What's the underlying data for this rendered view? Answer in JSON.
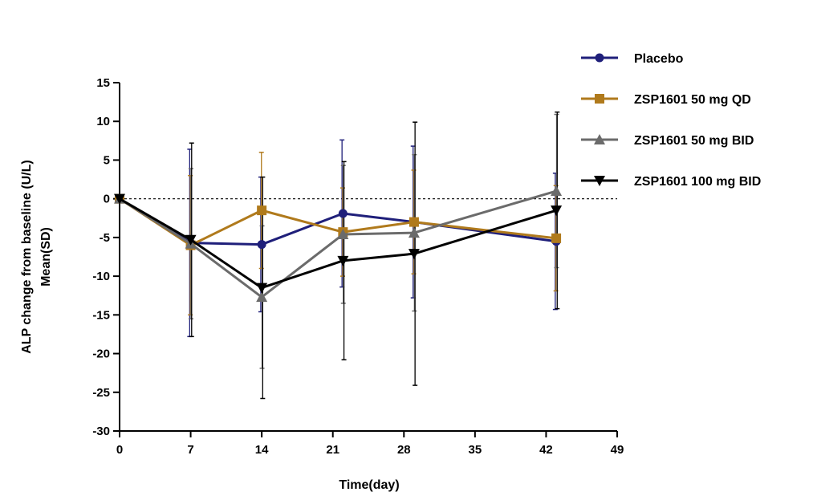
{
  "chart_data": {
    "type": "line",
    "title": "",
    "xlabel": "Time(day)",
    "ylabel_line1": "ALP change from baseline (U/L)",
    "ylabel_line2": "Mean(SD)",
    "xlim": [
      0,
      49
    ],
    "ylim": [
      -30,
      15
    ],
    "x_ticks": [
      0,
      7,
      14,
      21,
      28,
      35,
      42,
      49
    ],
    "y_ticks": [
      15,
      10,
      5,
      0,
      -5,
      -10,
      -15,
      -20,
      -25,
      -30
    ],
    "reference_line": 0,
    "legend_position": "top-right",
    "series": [
      {
        "name": "Placebo",
        "color": "#1f1f7a",
        "marker": "circle",
        "x": [
          0,
          7,
          14,
          22,
          29,
          43
        ],
        "y": [
          0,
          -5.7,
          -5.9,
          -1.9,
          -3.0,
          -5.5
        ],
        "sd": [
          0,
          12.1,
          8.7,
          9.5,
          9.8,
          8.8
        ]
      },
      {
        "name": "ZSP1601 50 mg QD",
        "color": "#b07a1c",
        "marker": "square",
        "x": [
          0,
          7,
          14,
          22,
          29,
          43
        ],
        "y": [
          0,
          -6.0,
          -1.5,
          -4.3,
          -3.0,
          -5.1
        ],
        "sd": [
          0,
          9.0,
          7.5,
          5.7,
          6.7,
          6.8
        ]
      },
      {
        "name": "ZSP1601 50 mg BID",
        "color": "#6b6b6b",
        "marker": "triangle-up",
        "x": [
          0,
          7,
          14,
          22,
          29,
          43
        ],
        "y": [
          0,
          -5.8,
          -12.7,
          -4.6,
          -4.4,
          1.0
        ],
        "sd": [
          0,
          9.7,
          9.2,
          8.9,
          10.1,
          9.9
        ]
      },
      {
        "name": "ZSP1601 100 mg BID",
        "color": "#000000",
        "marker": "triangle-down",
        "x": [
          0,
          7,
          14,
          22,
          29,
          43
        ],
        "y": [
          0,
          -5.3,
          -11.5,
          -8.0,
          -7.1,
          -1.5
        ],
        "sd": [
          0,
          12.5,
          14.3,
          12.8,
          17.0,
          12.7
        ]
      }
    ]
  }
}
